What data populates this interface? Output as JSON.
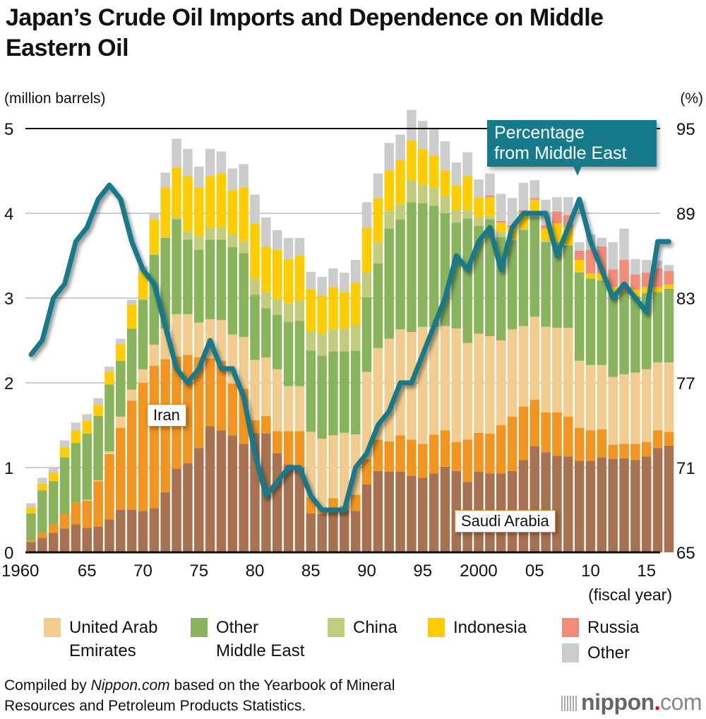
{
  "title": "Japan’s Crude Oil Imports and Dependence on Middle Eastern Oil",
  "left_unit": "(million barrels)",
  "right_unit": "(%)",
  "callout": "Percentage from Middle East",
  "callout_lines": [
    "Percentage",
    "from Middle East"
  ],
  "label_iran": "Iran",
  "label_saudi": "Saudi Arabia",
  "x_unit": "(fiscal year)",
  "footer": {
    "prefix": "Compiled by ",
    "source_italic": "Nippon.com",
    "suffix": " based on the Yearbook of Mineral",
    "line2": "Resources and Petroleum Products Statistics."
  },
  "logo": {
    "name": "nippon",
    "dot": ".",
    "tld": "com"
  },
  "legend": [
    {
      "label_line1": "United Arab",
      "label_line2": "Emirates",
      "color": "#f2cc8f"
    },
    {
      "label_line1": "Other",
      "label_line2": "Middle East",
      "color": "#8ab35d"
    },
    {
      "label_line1": "China",
      "label_line2": "",
      "color": "#c2cc7c"
    },
    {
      "label_line1": "Indonesia",
      "label_line2": "",
      "color": "#ffcc00"
    },
    {
      "label_line1": "Russia",
      "label_line2": "",
      "color": "#f28c78"
    },
    {
      "label_line1": "Other",
      "label_line2": "",
      "color": "#cccccc"
    }
  ],
  "chart_data": {
    "type": "bar",
    "stacked": true,
    "title": "Japan’s Crude Oil Imports and Dependence on Middle Eastern Oil",
    "xlabel": "(fiscal year)",
    "ylabel": "(million barrels)",
    "y2label": "(%)",
    "ylim": [
      0,
      5
    ],
    "y2lim": [
      65,
      95
    ],
    "yticks": [
      0,
      1,
      2,
      3,
      4,
      5
    ],
    "y2ticks": [
      65,
      71,
      77,
      83,
      89,
      95
    ],
    "xtick_labels": [
      {
        "year": 1960,
        "label": "1960"
      },
      {
        "year": 1965,
        "label": "65"
      },
      {
        "year": 1970,
        "label": "70"
      },
      {
        "year": 1975,
        "label": "75"
      },
      {
        "year": 1980,
        "label": "80"
      },
      {
        "year": 1985,
        "label": "85"
      },
      {
        "year": 1990,
        "label": "90"
      },
      {
        "year": 1995,
        "label": "95"
      },
      {
        "year": 2000,
        "label": "2000"
      },
      {
        "year": 2005,
        "label": "05"
      },
      {
        "year": 2010,
        "label": "10"
      },
      {
        "year": 2015,
        "label": "15"
      }
    ],
    "grid": true,
    "legend_position": "bottom",
    "categories": [
      1960,
      1961,
      1962,
      1963,
      1964,
      1965,
      1966,
      1967,
      1968,
      1969,
      1970,
      1971,
      1972,
      1973,
      1974,
      1975,
      1976,
      1977,
      1978,
      1979,
      1980,
      1981,
      1982,
      1983,
      1984,
      1985,
      1986,
      1987,
      1988,
      1989,
      1990,
      1991,
      1992,
      1993,
      1994,
      1995,
      1996,
      1997,
      1998,
      1999,
      2000,
      2001,
      2002,
      2003,
      2004,
      2005,
      2006,
      2007,
      2008,
      2009,
      2010,
      2011,
      2012,
      2013,
      2014,
      2015,
      2016,
      2017
    ],
    "series": [
      {
        "name": "Saudi Arabia",
        "color": "#a87250",
        "values": [
          0.12,
          0.17,
          0.23,
          0.28,
          0.33,
          0.29,
          0.3,
          0.39,
          0.5,
          0.5,
          0.49,
          0.52,
          0.71,
          0.99,
          1.05,
          1.23,
          1.49,
          1.44,
          1.38,
          1.28,
          1.41,
          1.4,
          1.17,
          1.04,
          1.0,
          0.46,
          0.45,
          0.5,
          0.49,
          0.49,
          0.8,
          0.96,
          0.95,
          0.95,
          0.9,
          0.88,
          0.93,
          1.01,
          0.96,
          0.83,
          0.95,
          0.93,
          0.93,
          0.96,
          1.09,
          1.25,
          1.18,
          1.14,
          1.13,
          1.08,
          1.08,
          1.12,
          1.1,
          1.11,
          1.09,
          1.13,
          1.23,
          1.26
        ]
      },
      {
        "name": "Iran",
        "color": "#f29420",
        "values": [
          0.02,
          0.06,
          0.1,
          0.17,
          0.26,
          0.32,
          0.54,
          0.77,
          0.97,
          1.29,
          1.51,
          1.68,
          1.57,
          1.32,
          1.28,
          1.07,
          0.8,
          0.82,
          0.61,
          0.65,
          0.15,
          0.21,
          0.26,
          0.39,
          0.43,
          0.19,
          0.08,
          0.14,
          0.06,
          0.19,
          0.3,
          0.37,
          0.36,
          0.43,
          0.43,
          0.4,
          0.46,
          0.43,
          0.34,
          0.5,
          0.46,
          0.47,
          0.57,
          0.64,
          0.63,
          0.55,
          0.47,
          0.51,
          0.47,
          0.39,
          0.36,
          0.33,
          0.17,
          0.17,
          0.19,
          0.17,
          0.21,
          0.16
        ]
      },
      {
        "name": "United Arab Emirates",
        "color": "#f2cc8f",
        "values": [
          0,
          0,
          0,
          0,
          0,
          0.01,
          0.01,
          0.03,
          0.13,
          0.13,
          0.16,
          0.25,
          0.36,
          0.5,
          0.48,
          0.41,
          0.46,
          0.48,
          0.58,
          0.61,
          0.71,
          0.69,
          0.73,
          0.53,
          0.53,
          0.77,
          0.81,
          0.74,
          0.86,
          0.71,
          1.03,
          1.08,
          1.21,
          1.25,
          1.27,
          1.38,
          1.27,
          1.23,
          1.34,
          1.14,
          1.17,
          1.15,
          1.0,
          1.03,
          0.95,
          0.98,
          1.01,
          1.0,
          1.05,
          0.79,
          0.77,
          0.76,
          0.8,
          0.82,
          0.84,
          0.86,
          0.8,
          0.82
        ]
      },
      {
        "name": "Other Middle East",
        "color": "#8ab35d",
        "values": [
          0.32,
          0.5,
          0.51,
          0.67,
          0.7,
          0.78,
          0.76,
          0.79,
          0.66,
          0.72,
          0.82,
          1.06,
          1.07,
          1.12,
          0.88,
          0.86,
          0.94,
          0.95,
          1.03,
          0.99,
          0.77,
          0.58,
          0.64,
          0.76,
          0.77,
          0.96,
          0.98,
          0.99,
          0.96,
          0.99,
          0.88,
          1.0,
          1.3,
          1.3,
          1.53,
          1.46,
          1.43,
          1.33,
          1.25,
          1.47,
          1.27,
          1.38,
          1.22,
          1.05,
          1.13,
          1.18,
          1.0,
          1.01,
          0.97,
          1.04,
          1.02,
          1.0,
          1.0,
          0.97,
          0.9,
          0.9,
          0.83,
          0.87
        ]
      },
      {
        "name": "China",
        "color": "#c2cc7c",
        "values": [
          0,
          0,
          0,
          0,
          0,
          0,
          0,
          0,
          0,
          0,
          0.01,
          0.01,
          0.01,
          0.02,
          0.1,
          0.16,
          0.14,
          0.15,
          0.15,
          0.14,
          0.19,
          0.19,
          0.19,
          0.22,
          0.24,
          0.22,
          0.26,
          0.26,
          0.27,
          0.3,
          0.29,
          0.25,
          0.21,
          0.18,
          0.26,
          0.22,
          0.21,
          0.2,
          0.15,
          0.1,
          0.1,
          0.04,
          0.06,
          0.02,
          0.02,
          0.02,
          0.02,
          0.01,
          0.01,
          0.01,
          0,
          0,
          0,
          0,
          0,
          0,
          0,
          0
        ]
      },
      {
        "name": "Indonesia",
        "color": "#ffcc00",
        "values": [
          0.07,
          0.08,
          0.1,
          0.12,
          0.15,
          0.15,
          0.13,
          0.15,
          0.2,
          0.28,
          0.31,
          0.41,
          0.58,
          0.59,
          0.65,
          0.58,
          0.61,
          0.63,
          0.52,
          0.64,
          0.65,
          0.54,
          0.58,
          0.52,
          0.53,
          0.5,
          0.45,
          0.5,
          0.43,
          0.5,
          0.53,
          0.52,
          0.47,
          0.52,
          0.47,
          0.42,
          0.38,
          0.31,
          0.29,
          0.4,
          0.24,
          0.22,
          0.11,
          0.13,
          0.19,
          0.18,
          0.14,
          0.21,
          0.2,
          0.14,
          0.06,
          0.08,
          0.06,
          0.0,
          0.08,
          0.07,
          0.06,
          0.05
        ]
      },
      {
        "name": "Russia",
        "color": "#f28c78",
        "values": [
          0,
          0,
          0,
          0,
          0,
          0,
          0,
          0,
          0,
          0,
          0,
          0,
          0,
          0,
          0,
          0,
          0,
          0,
          0,
          0,
          0,
          0,
          0,
          0,
          0,
          0,
          0,
          0,
          0,
          0,
          0,
          0,
          0,
          0,
          0,
          0,
          0,
          0,
          0,
          0,
          0,
          0.02,
          0.02,
          0.03,
          0.03,
          0.02,
          0.04,
          0.14,
          0.15,
          0.11,
          0.28,
          0.32,
          0.21,
          0.38,
          0.18,
          0.17,
          0.22,
          0.16
        ]
      },
      {
        "name": "Other",
        "color": "#cccccc",
        "values": [
          0.05,
          0.07,
          0.06,
          0.08,
          0.09,
          0.08,
          0.08,
          0.06,
          0.06,
          0.06,
          0.07,
          0.07,
          0.18,
          0.34,
          0.32,
          0.24,
          0.32,
          0.26,
          0.26,
          0.27,
          0.34,
          0.34,
          0.23,
          0.25,
          0.21,
          0.21,
          0.22,
          0.22,
          0.23,
          0.27,
          0.3,
          0.29,
          0.33,
          0.3,
          0.36,
          0.33,
          0.33,
          0.34,
          0.27,
          0.28,
          0.21,
          0.26,
          0.32,
          0.32,
          0.32,
          0.21,
          0.3,
          0.17,
          0.21,
          0.1,
          0.18,
          0.1,
          0.32,
          0.37,
          0.18,
          0.15,
          0.09,
          0.07
        ]
      }
    ],
    "line_series": {
      "name": "Percentage from Middle East",
      "color": "#167a8b",
      "axis": "right",
      "values": [
        79,
        80,
        83,
        84,
        87,
        88,
        90,
        91,
        90,
        87,
        85,
        84,
        81,
        78,
        77,
        78,
        80,
        78,
        78,
        76,
        72,
        69,
        70,
        71,
        71,
        69,
        68,
        68,
        68,
        71,
        72,
        74,
        75,
        77,
        77,
        79,
        81,
        83,
        86,
        85,
        87,
        88,
        85,
        88,
        89,
        89,
        89,
        86,
        88,
        90,
        87,
        85,
        83,
        84,
        83,
        82,
        87,
        87
      ]
    }
  }
}
